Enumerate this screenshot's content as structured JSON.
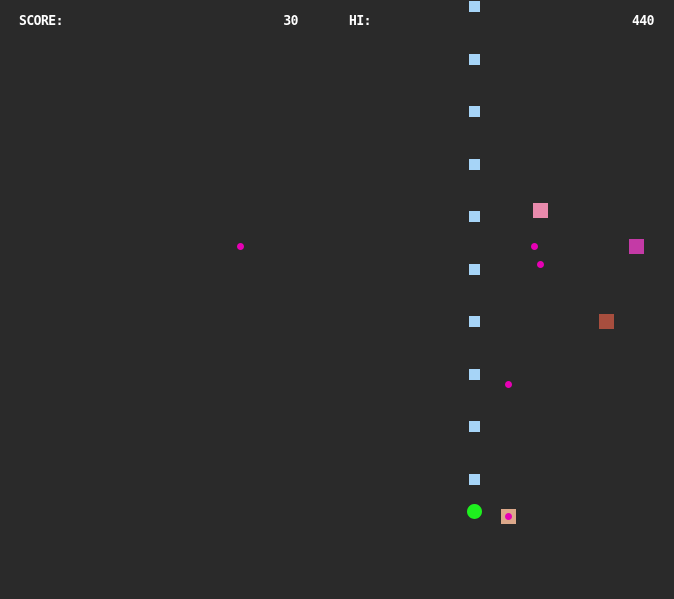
{
  "hud": {
    "score_label": "SCORE:",
    "score": "30",
    "hi_label": "HI:",
    "hi_score": "440"
  },
  "colors": {
    "background": "#2a2a2a",
    "trail": "#a6d4f7",
    "player": "#1ef01e",
    "bullet": "#e600b4",
    "enemy_pink": "#e88aac",
    "enemy_magenta": "#c43aa6",
    "enemy_brown": "#a74e3e",
    "enemy_tan": "#dca88a"
  },
  "sprites": {
    "trail": "light-blue-square",
    "player": "green-circle",
    "bullet": "magenta-dot",
    "enemy": "colored-square"
  }
}
